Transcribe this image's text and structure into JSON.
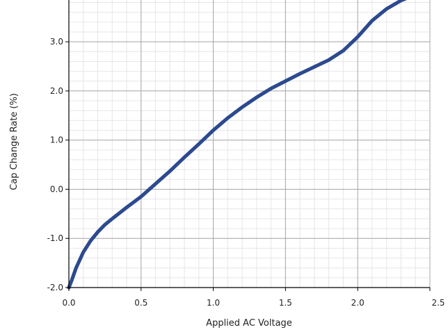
{
  "chart_data": {
    "type": "scatter",
    "title": "",
    "xlabel": "Applied AC Voltage",
    "ylabel": "Cap Change Rate (%)",
    "xlim": [
      0.0,
      2.5
    ],
    "ylim": [
      -2.0,
      3.85
    ],
    "x_ticks": [
      0.0,
      0.5,
      1.0,
      1.5,
      2.0,
      2.5
    ],
    "x_tick_labels": [
      "0.0",
      "0.5",
      "1.0",
      "1.5",
      "2.0",
      "2.5"
    ],
    "y_ticks": [
      -2.0,
      -1.0,
      0.0,
      1.0,
      2.0,
      3.0
    ],
    "y_tick_labels": [
      "-2.0",
      "-1.0",
      "0.0",
      "1.0",
      "2.0",
      "3.0"
    ],
    "grid": true,
    "minor_grid": true,
    "legend": "none",
    "series_color": "#2d4a8f",
    "series": [
      {
        "x": [
          0.0,
          0.02,
          0.05,
          0.1,
          0.15,
          0.2,
          0.25,
          0.3,
          0.4,
          0.5,
          0.6,
          0.7,
          0.8,
          0.9,
          1.0,
          1.1,
          1.2,
          1.3,
          1.4,
          1.5,
          1.6,
          1.7,
          1.8,
          1.9,
          2.0,
          2.1,
          2.2,
          2.3,
          2.35
        ],
        "y": [
          -2.0,
          -1.85,
          -1.6,
          -1.28,
          -1.05,
          -0.87,
          -0.72,
          -0.6,
          -0.37,
          -0.15,
          0.11,
          0.37,
          0.65,
          0.92,
          1.2,
          1.45,
          1.67,
          1.87,
          2.05,
          2.2,
          2.35,
          2.49,
          2.63,
          2.82,
          3.1,
          3.43,
          3.67,
          3.84,
          3.9
        ]
      }
    ]
  }
}
